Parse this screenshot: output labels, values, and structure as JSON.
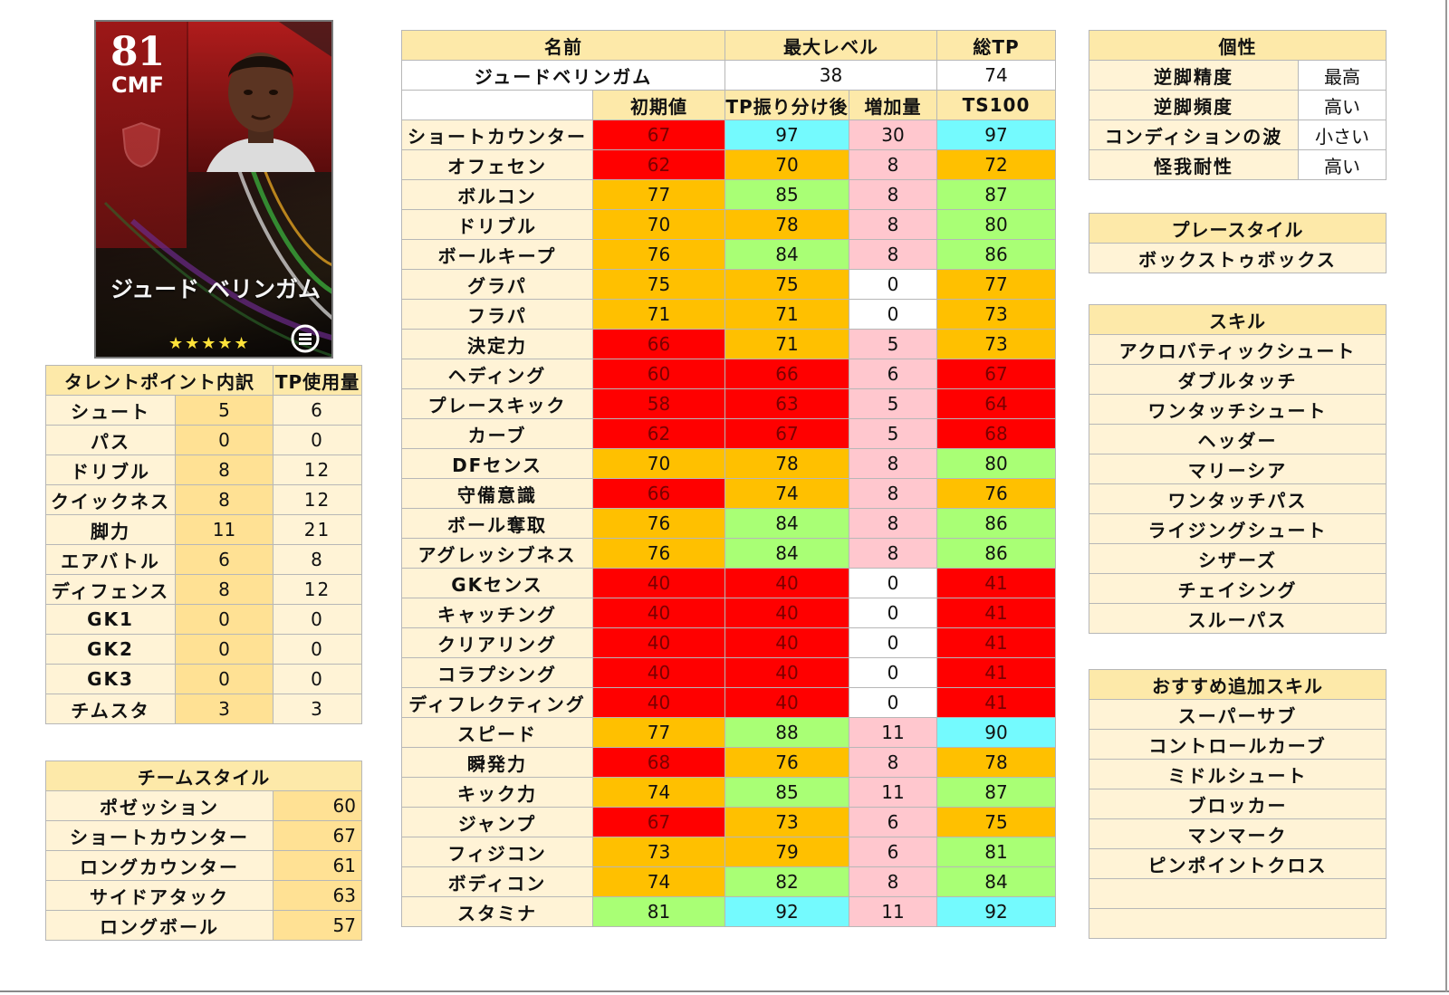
{
  "card": {
    "rating": "81",
    "position": "CMF",
    "name": "ジュード ベリンガム",
    "stars": "★★★★★"
  },
  "profile": {
    "headers": {
      "name": "名前",
      "max_level": "最大レベル",
      "total_tp": "総TP"
    },
    "values": {
      "name": "ジュードベリンガム",
      "max_level": "38",
      "total_tp": "74"
    }
  },
  "stats": {
    "headers": [
      "初期値",
      "TP振り分け後",
      "増加量",
      "TS100"
    ],
    "rows": [
      {
        "label": "ショートカウンター",
        "values": [
          "67",
          "97",
          "30",
          "97"
        ],
        "colors": [
          "red",
          "cyan",
          "pink",
          "cyan"
        ]
      },
      {
        "label": "オフェセン",
        "values": [
          "62",
          "70",
          "8",
          "72"
        ],
        "colors": [
          "red",
          "orange",
          "pink",
          "orange"
        ]
      },
      {
        "label": "ボルコン",
        "values": [
          "77",
          "85",
          "8",
          "87"
        ],
        "colors": [
          "orange",
          "green",
          "pink",
          "green"
        ]
      },
      {
        "label": "ドリブル",
        "values": [
          "70",
          "78",
          "8",
          "80"
        ],
        "colors": [
          "orange",
          "orange",
          "pink",
          "green"
        ]
      },
      {
        "label": "ボールキープ",
        "values": [
          "76",
          "84",
          "8",
          "86"
        ],
        "colors": [
          "orange",
          "green",
          "pink",
          "green"
        ]
      },
      {
        "label": "グラパ",
        "values": [
          "75",
          "75",
          "0",
          "77"
        ],
        "colors": [
          "orange",
          "orange",
          "white",
          "orange"
        ]
      },
      {
        "label": "フラパ",
        "values": [
          "71",
          "71",
          "0",
          "73"
        ],
        "colors": [
          "orange",
          "orange",
          "white",
          "orange"
        ]
      },
      {
        "label": "決定力",
        "values": [
          "66",
          "71",
          "5",
          "73"
        ],
        "colors": [
          "red",
          "orange",
          "pink",
          "orange"
        ]
      },
      {
        "label": "ヘディング",
        "values": [
          "60",
          "66",
          "6",
          "67"
        ],
        "colors": [
          "red",
          "red",
          "pink",
          "red"
        ]
      },
      {
        "label": "プレースキック",
        "values": [
          "58",
          "63",
          "5",
          "64"
        ],
        "colors": [
          "red",
          "red",
          "pink",
          "red"
        ]
      },
      {
        "label": "カーブ",
        "values": [
          "62",
          "67",
          "5",
          "68"
        ],
        "colors": [
          "red",
          "red",
          "pink",
          "red"
        ]
      },
      {
        "label": "DFセンス",
        "values": [
          "70",
          "78",
          "8",
          "80"
        ],
        "colors": [
          "orange",
          "orange",
          "pink",
          "green"
        ]
      },
      {
        "label": "守備意識",
        "values": [
          "66",
          "74",
          "8",
          "76"
        ],
        "colors": [
          "red",
          "orange",
          "pink",
          "orange"
        ]
      },
      {
        "label": "ボール奪取",
        "values": [
          "76",
          "84",
          "8",
          "86"
        ],
        "colors": [
          "orange",
          "green",
          "pink",
          "green"
        ]
      },
      {
        "label": "アグレッシブネス",
        "values": [
          "76",
          "84",
          "8",
          "86"
        ],
        "colors": [
          "orange",
          "green",
          "pink",
          "green"
        ]
      },
      {
        "label": "GKセンス",
        "values": [
          "40",
          "40",
          "0",
          "41"
        ],
        "colors": [
          "red",
          "red",
          "white",
          "red"
        ]
      },
      {
        "label": "キャッチング",
        "values": [
          "40",
          "40",
          "0",
          "41"
        ],
        "colors": [
          "red",
          "red",
          "white",
          "red"
        ]
      },
      {
        "label": "クリアリング",
        "values": [
          "40",
          "40",
          "0",
          "41"
        ],
        "colors": [
          "red",
          "red",
          "white",
          "red"
        ]
      },
      {
        "label": "コラプシング",
        "values": [
          "40",
          "40",
          "0",
          "41"
        ],
        "colors": [
          "red",
          "red",
          "white",
          "red"
        ]
      },
      {
        "label": "ディフレクティング",
        "values": [
          "40",
          "40",
          "0",
          "41"
        ],
        "colors": [
          "red",
          "red",
          "white",
          "red"
        ]
      },
      {
        "label": "スピード",
        "values": [
          "77",
          "88",
          "11",
          "90"
        ],
        "colors": [
          "orange",
          "green",
          "pink",
          "cyan"
        ]
      },
      {
        "label": "瞬発力",
        "values": [
          "68",
          "76",
          "8",
          "78"
        ],
        "colors": [
          "red",
          "orange",
          "pink",
          "orange"
        ]
      },
      {
        "label": "キック力",
        "values": [
          "74",
          "85",
          "11",
          "87"
        ],
        "colors": [
          "orange",
          "green",
          "pink",
          "green"
        ]
      },
      {
        "label": "ジャンプ",
        "values": [
          "67",
          "73",
          "6",
          "75"
        ],
        "colors": [
          "red",
          "orange",
          "pink",
          "orange"
        ]
      },
      {
        "label": "フィジコン",
        "values": [
          "73",
          "79",
          "6",
          "81"
        ],
        "colors": [
          "orange",
          "orange",
          "pink",
          "green"
        ]
      },
      {
        "label": "ボディコン",
        "values": [
          "74",
          "82",
          "8",
          "84"
        ],
        "colors": [
          "orange",
          "green",
          "pink",
          "green"
        ]
      },
      {
        "label": "スタミナ",
        "values": [
          "81",
          "92",
          "11",
          "92"
        ],
        "colors": [
          "green",
          "cyan",
          "pink",
          "cyan"
        ]
      }
    ]
  },
  "talent_points": {
    "headers": [
      "タレントポイント内訳",
      "TP使用量"
    ],
    "rows": [
      {
        "label": "シュート",
        "points": "5",
        "used": "6"
      },
      {
        "label": "パス",
        "points": "0",
        "used": "0"
      },
      {
        "label": "ドリブル",
        "points": "8",
        "used": "12"
      },
      {
        "label": "クイックネス",
        "points": "8",
        "used": "12"
      },
      {
        "label": "脚力",
        "points": "11",
        "used": "21"
      },
      {
        "label": "エアバトル",
        "points": "6",
        "used": "8"
      },
      {
        "label": "ディフェンス",
        "points": "8",
        "used": "12"
      },
      {
        "label": "GK1",
        "points": "0",
        "used": "0"
      },
      {
        "label": "GK2",
        "points": "0",
        "used": "0"
      },
      {
        "label": "GK3",
        "points": "0",
        "used": "0"
      },
      {
        "label": "チムスタ",
        "points": "3",
        "used": "3"
      }
    ]
  },
  "team_style": {
    "header": "チームスタイル",
    "rows": [
      {
        "label": "ポゼッション",
        "value": "60"
      },
      {
        "label": "ショートカウンター",
        "value": "67"
      },
      {
        "label": "ロングカウンター",
        "value": "61"
      },
      {
        "label": "サイドアタック",
        "value": "63"
      },
      {
        "label": "ロングボール",
        "value": "57"
      }
    ]
  },
  "traits": {
    "header": "個性",
    "rows": [
      {
        "label": "逆脚精度",
        "value": "最高"
      },
      {
        "label": "逆脚頻度",
        "value": "高い"
      },
      {
        "label": "コンディションの波",
        "value": "小さい"
      },
      {
        "label": "怪我耐性",
        "value": "高い"
      }
    ]
  },
  "play_style": {
    "header": "プレースタイル",
    "value": "ボックストゥボックス"
  },
  "skills": {
    "header": "スキル",
    "items": [
      "アクロバティックシュート",
      "ダブルタッチ",
      "ワンタッチシュート",
      "ヘッダー",
      "マリーシア",
      "ワンタッチパス",
      "ライジングシュート",
      "シザーズ",
      "チェイシング",
      "スルーパス"
    ]
  },
  "recommended_skills": {
    "header": "おすすめ追加スキル",
    "items": [
      "スーパーサブ",
      "コントロールカーブ",
      "ミドルシュート",
      "ブロッカー",
      "マンマーク",
      "ピンポイントクロス",
      "",
      ""
    ]
  },
  "colors": {
    "red": "#ff0000",
    "orange": "#ffc000",
    "green": "#a9ff75",
    "cyan": "#74fafe",
    "pink": "#ffc7ce",
    "white": "#ffffff",
    "header_bg": "#fde9a9",
    "label_bg": "#fff3d6",
    "value_bg": "#ffe194"
  }
}
